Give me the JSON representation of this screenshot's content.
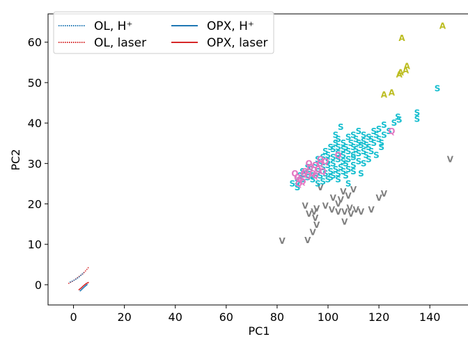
{
  "chart_data": {
    "type": "scatter",
    "xlabel": "PC1",
    "ylabel": "PC2",
    "xlim": [
      -10,
      155
    ],
    "ylim": [
      -5,
      67
    ],
    "xticks": [
      0,
      20,
      40,
      60,
      80,
      100,
      120,
      140
    ],
    "yticks": [
      0,
      10,
      20,
      30,
      40,
      50,
      60
    ],
    "legend": {
      "placement": "top-left",
      "columns": 2,
      "entries": [
        {
          "label": "OL, H⁺",
          "color": "#1f77b4",
          "style": "dotted"
        },
        {
          "label": "OL, laser",
          "color": "#d62728",
          "style": "dotted"
        },
        {
          "label": "OPX, H⁺",
          "color": "#1f77b4",
          "style": "solid"
        },
        {
          "label": "OPX, laser",
          "color": "#d62728",
          "style": "solid"
        }
      ]
    },
    "lines": [
      {
        "name": "OL, laser",
        "color": "#d62728",
        "style": "dotted",
        "points": [
          [
            -2,
            0.3
          ],
          [
            0,
            1.0
          ],
          [
            2,
            2.0
          ],
          [
            3.5,
            2.6
          ],
          [
            5,
            3.6
          ],
          [
            6,
            4.4
          ]
        ]
      },
      {
        "name": "OL, H⁺",
        "color": "#1f77b4",
        "style": "dotted",
        "points": [
          [
            -1.5,
            0.6
          ],
          [
            0.5,
            1.2
          ],
          [
            2,
            1.8
          ],
          [
            3,
            2.4
          ],
          [
            4,
            3.0
          ]
        ]
      },
      {
        "name": "OPX, H⁺",
        "color": "#1f77b4",
        "style": "solid",
        "points": [
          [
            2.5,
            -1.6
          ],
          [
            3.5,
            -1.0
          ],
          [
            4.5,
            -0.4
          ],
          [
            5.5,
            0.1
          ]
        ]
      },
      {
        "name": "OPX, laser",
        "color": "#d62728",
        "style": "solid",
        "points": [
          [
            2,
            -1.3
          ],
          [
            3,
            -0.8
          ],
          [
            4,
            -0.2
          ],
          [
            5,
            0.3
          ],
          [
            6,
            0.6
          ]
        ]
      }
    ],
    "groups": [
      {
        "letter": "A",
        "color": "#bcbd22",
        "points": [
          [
            145,
            64
          ],
          [
            129,
            61
          ],
          [
            131,
            54
          ],
          [
            130.5,
            53
          ],
          [
            128.5,
            52.5
          ],
          [
            128,
            52
          ],
          [
            125,
            47.5
          ],
          [
            122,
            47
          ]
        ]
      },
      {
        "letter": "V",
        "color": "#7f7f7f",
        "points": [
          [
            148,
            31
          ],
          [
            122,
            22.5
          ],
          [
            120,
            21.5
          ],
          [
            117,
            18.5
          ],
          [
            110,
            23.5
          ],
          [
            108,
            22
          ],
          [
            106,
            23
          ],
          [
            105,
            21
          ],
          [
            104,
            20
          ],
          [
            102,
            21.5
          ],
          [
            101.5,
            18.5
          ],
          [
            111,
            18.5
          ],
          [
            108.5,
            19
          ],
          [
            106.5,
            18
          ],
          [
            109,
            17.5
          ],
          [
            97,
            24
          ],
          [
            99,
            19.5
          ],
          [
            95.5,
            18.8
          ],
          [
            94.5,
            18
          ],
          [
            92.5,
            17.5
          ],
          [
            91,
            19.5
          ],
          [
            95,
            16.5
          ],
          [
            95.5,
            14.8
          ],
          [
            94,
            13
          ],
          [
            92,
            11
          ],
          [
            82,
            10.8
          ],
          [
            106.5,
            15.5
          ],
          [
            113,
            18
          ],
          [
            104,
            18
          ]
        ]
      },
      {
        "letter": "S",
        "color": "#17becf",
        "points": [
          [
            143,
            48.5
          ],
          [
            135,
            42.5
          ],
          [
            135,
            41
          ],
          [
            127.5,
            41.5
          ],
          [
            128,
            40.8
          ],
          [
            126,
            40
          ],
          [
            124,
            38
          ],
          [
            122,
            39.5
          ],
          [
            120,
            38.5
          ],
          [
            118,
            38
          ],
          [
            116,
            36.5
          ],
          [
            114,
            35.5
          ],
          [
            112,
            35
          ],
          [
            110,
            34
          ],
          [
            108,
            33
          ],
          [
            106,
            32
          ],
          [
            104,
            31
          ],
          [
            102,
            30
          ],
          [
            100,
            29.5
          ],
          [
            98,
            29
          ],
          [
            96,
            28
          ],
          [
            94,
            27
          ],
          [
            92,
            26.5
          ],
          [
            90,
            26
          ],
          [
            88,
            25.5
          ],
          [
            86,
            25
          ],
          [
            88,
            24
          ],
          [
            104,
            36
          ],
          [
            106,
            35
          ],
          [
            108,
            36.5
          ],
          [
            110,
            37
          ],
          [
            112,
            38
          ],
          [
            114,
            37
          ],
          [
            115,
            34.5
          ],
          [
            117,
            33
          ],
          [
            116,
            31
          ],
          [
            114,
            30
          ],
          [
            112,
            30.5
          ],
          [
            110,
            29.5
          ],
          [
            108,
            28.5
          ],
          [
            106,
            28
          ],
          [
            104,
            27.5
          ],
          [
            102,
            27
          ],
          [
            100,
            26
          ],
          [
            98,
            25.5
          ],
          [
            96,
            25
          ],
          [
            94,
            26
          ],
          [
            100,
            32
          ],
          [
            102,
            33.5
          ],
          [
            104,
            34
          ],
          [
            106,
            33.5
          ],
          [
            108,
            31
          ],
          [
            110,
            31.5
          ],
          [
            112,
            32.5
          ],
          [
            114,
            33
          ],
          [
            116,
            34
          ],
          [
            118,
            35
          ],
          [
            120,
            36
          ],
          [
            122,
            37
          ],
          [
            119,
            32
          ],
          [
            121,
            34
          ],
          [
            113,
            27.5
          ],
          [
            108,
            25
          ],
          [
            105,
            39
          ],
          [
            103,
            37
          ],
          [
            110,
            32
          ],
          [
            107,
            30
          ],
          [
            105,
            29
          ],
          [
            103,
            28.5
          ],
          [
            101,
            28
          ],
          [
            99,
            27.5
          ],
          [
            97,
            27
          ],
          [
            95,
            29.5
          ],
          [
            93,
            28.5
          ],
          [
            91,
            27.5
          ],
          [
            89,
            27
          ],
          [
            96,
            31
          ],
          [
            98,
            31.5
          ],
          [
            100,
            30.5
          ],
          [
            102,
            31.5
          ],
          [
            104,
            32.5
          ],
          [
            106,
            30.5
          ],
          [
            109,
            35
          ],
          [
            111,
            36
          ],
          [
            113,
            34.5
          ],
          [
            117,
            36
          ],
          [
            119,
            37
          ],
          [
            121,
            35
          ],
          [
            115,
            32
          ],
          [
            111,
            33.5
          ],
          [
            107,
            34
          ],
          [
            103,
            35
          ],
          [
            101,
            34
          ],
          [
            99,
            33
          ],
          [
            97,
            30
          ],
          [
            95,
            27
          ],
          [
            92,
            29
          ],
          [
            90,
            28
          ],
          [
            101,
            26.5
          ],
          [
            104,
            26
          ],
          [
            107,
            27
          ],
          [
            110,
            28
          ]
        ]
      },
      {
        "letter": "Q",
        "color": "#e377c2",
        "points": [
          [
            125,
            38
          ],
          [
            104,
            32
          ],
          [
            95,
            29.5
          ],
          [
            93,
            29
          ],
          [
            91,
            28
          ],
          [
            90.5,
            27.5
          ],
          [
            92,
            27
          ],
          [
            94,
            27.5
          ],
          [
            96,
            28.5
          ],
          [
            97,
            30
          ],
          [
            99,
            30.5
          ],
          [
            89,
            26
          ],
          [
            88.5,
            25
          ],
          [
            90,
            25.5
          ],
          [
            87,
            27.5
          ],
          [
            88,
            26.5
          ],
          [
            95,
            27
          ],
          [
            97,
            31
          ],
          [
            92.5,
            30
          ],
          [
            98,
            28
          ]
        ]
      }
    ]
  }
}
